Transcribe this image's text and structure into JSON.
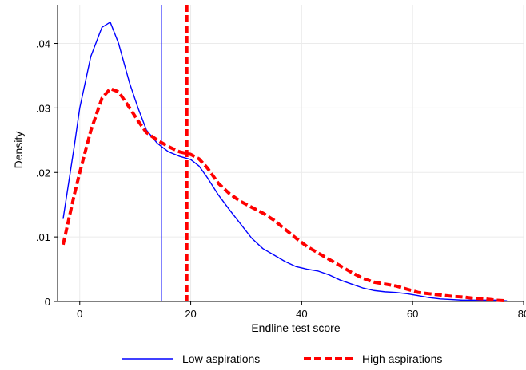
{
  "chart_data": {
    "type": "line",
    "xlabel": "Endline test score",
    "ylabel": "Density",
    "xlim": [
      -4,
      80
    ],
    "ylim": [
      0,
      0.046
    ],
    "x_ticks": [
      0,
      20,
      40,
      60,
      80
    ],
    "x_tick_labels": [
      "0",
      "20",
      "40",
      "60",
      "80"
    ],
    "y_ticks": [
      0,
      0.01,
      0.02,
      0.03,
      0.04
    ],
    "y_tick_labels": [
      "0",
      ".01",
      ".02",
      ".03",
      ".04"
    ],
    "grid": true,
    "legend_position": "bottom",
    "series": [
      {
        "name": "Low aspirations",
        "color": "#0000ff",
        "style": "solid",
        "mean": 14.7,
        "x": [
          -3,
          -1,
          0,
          2,
          4,
          5.5,
          7,
          9,
          10.5,
          12,
          14,
          16,
          18,
          20,
          21.5,
          23,
          25,
          27,
          29,
          31,
          33,
          35,
          37,
          39,
          41,
          43,
          45,
          47,
          49,
          51,
          53,
          55,
          57,
          59,
          61,
          63,
          65,
          67,
          69,
          71,
          73,
          75,
          77
        ],
        "y": [
          0.0128,
          0.024,
          0.03,
          0.038,
          0.0425,
          0.0433,
          0.04,
          0.0338,
          0.03,
          0.0266,
          0.0245,
          0.0232,
          0.0225,
          0.022,
          0.021,
          0.0192,
          0.0165,
          0.0142,
          0.012,
          0.0098,
          0.0082,
          0.0072,
          0.0062,
          0.0054,
          0.005,
          0.0047,
          0.0041,
          0.0033,
          0.0027,
          0.0021,
          0.0017,
          0.0015,
          0.0014,
          0.0012,
          0.0009,
          0.0006,
          0.0004,
          0.0003,
          0.0002,
          0.0002,
          0.0002,
          0.0002,
          0.0001
        ]
      },
      {
        "name": "High aspirations",
        "color": "#ff0000",
        "style": "dashed",
        "mean": 19.3,
        "x": [
          -3,
          -1,
          0,
          2,
          4,
          5.5,
          7,
          9,
          10.5,
          12,
          14,
          16,
          18,
          20,
          21.5,
          23,
          25,
          27,
          29,
          31,
          33,
          35,
          37,
          39,
          41,
          43,
          45,
          47,
          49,
          51,
          53,
          55,
          57,
          59,
          61,
          63,
          65,
          67,
          69,
          71,
          73,
          75,
          77
        ],
        "y": [
          0.0088,
          0.0165,
          0.02,
          0.0265,
          0.0315,
          0.033,
          0.0325,
          0.03,
          0.028,
          0.0262,
          0.025,
          0.024,
          0.0232,
          0.0228,
          0.0221,
          0.0207,
          0.0183,
          0.0167,
          0.0155,
          0.0146,
          0.0137,
          0.0126,
          0.0112,
          0.0098,
          0.0085,
          0.0075,
          0.0065,
          0.0055,
          0.0045,
          0.0036,
          0.003,
          0.0027,
          0.0024,
          0.0019,
          0.0014,
          0.0012,
          0.001,
          0.0008,
          0.0007,
          0.0005,
          0.0004,
          0.0002,
          0.0001
        ]
      }
    ]
  }
}
